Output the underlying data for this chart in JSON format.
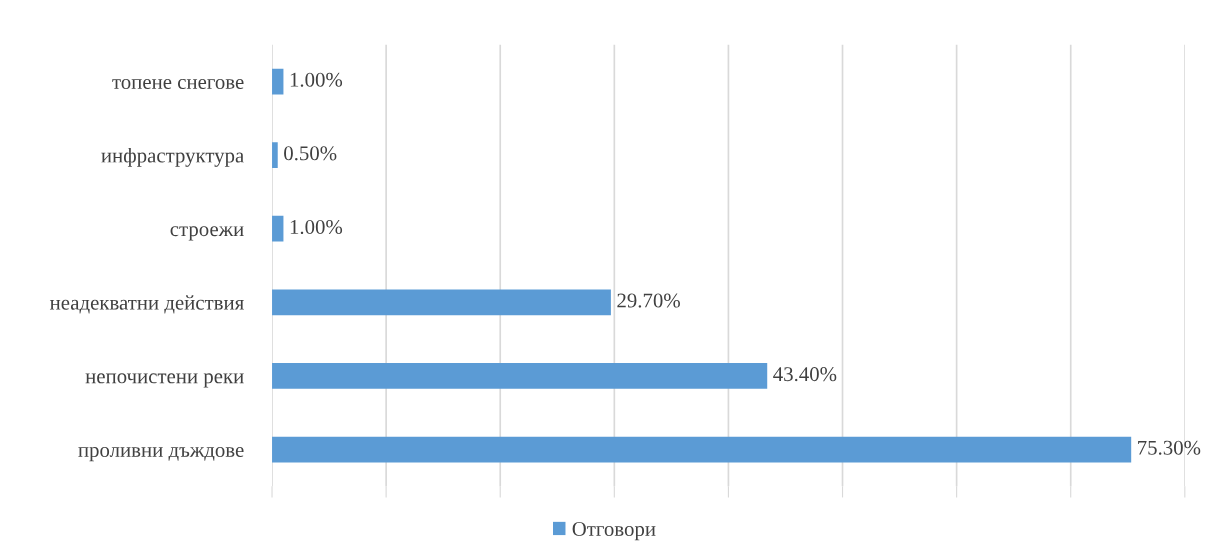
{
  "chart_data": {
    "type": "bar",
    "orientation": "horizontal",
    "categories": [
      "топене снегове",
      "инфраструктура",
      "строежи",
      "неадекватни действия",
      "непочистени реки",
      "проливни дъждове"
    ],
    "series": [
      {
        "name": "Отговори",
        "color": "#5b9bd5",
        "values": [
          1.0,
          0.5,
          1.0,
          29.7,
          43.4,
          75.3
        ],
        "value_labels": [
          "1.00%",
          "0.50%",
          "1.00%",
          "29.70%",
          "43.40%",
          "75.30%"
        ]
      }
    ],
    "xlim": [
      0,
      80
    ],
    "xticks": [
      {
        "value": 0,
        "label": null
      },
      {
        "value": 10,
        "label": null
      },
      {
        "value": 20,
        "label": null
      },
      {
        "value": 30,
        "label": null
      },
      {
        "value": 40,
        "label": null
      },
      {
        "value": 50,
        "label": null
      },
      {
        "value": 60,
        "label": null
      },
      {
        "value": 70,
        "label": null
      },
      {
        "value": 80,
        "label": null
      }
    ],
    "grid": "x",
    "legend": "bottom"
  }
}
